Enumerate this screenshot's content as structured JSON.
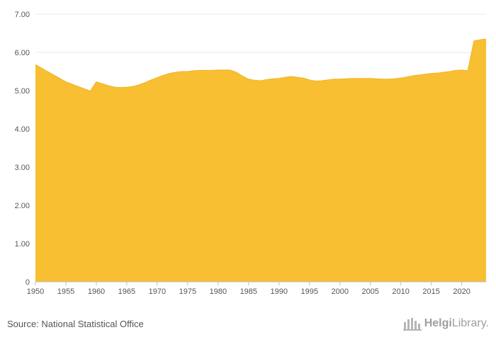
{
  "chart_data": {
    "type": "area",
    "title": "",
    "xlabel": "",
    "ylabel": "",
    "x": [
      1950,
      1951,
      1952,
      1953,
      1954,
      1955,
      1956,
      1957,
      1958,
      1959,
      1960,
      1961,
      1962,
      1963,
      1964,
      1965,
      1966,
      1967,
      1968,
      1969,
      1970,
      1971,
      1972,
      1973,
      1974,
      1975,
      1976,
      1977,
      1978,
      1979,
      1980,
      1981,
      1982,
      1983,
      1984,
      1985,
      1986,
      1987,
      1988,
      1989,
      1990,
      1991,
      1992,
      1993,
      1994,
      1995,
      1996,
      1997,
      1998,
      1999,
      2000,
      2001,
      2002,
      2003,
      2004,
      2005,
      2006,
      2007,
      2008,
      2009,
      2010,
      2011,
      2012,
      2013,
      2014,
      2015,
      2016,
      2017,
      2018,
      2019,
      2020,
      2021,
      2022,
      2023,
      2024
    ],
    "values": [
      5.68,
      5.59,
      5.5,
      5.41,
      5.32,
      5.23,
      5.17,
      5.11,
      5.05,
      4.99,
      5.23,
      5.18,
      5.13,
      5.09,
      5.08,
      5.09,
      5.11,
      5.15,
      5.21,
      5.28,
      5.34,
      5.4,
      5.45,
      5.48,
      5.5,
      5.5,
      5.52,
      5.53,
      5.53,
      5.53,
      5.54,
      5.54,
      5.54,
      5.48,
      5.38,
      5.3,
      5.27,
      5.26,
      5.29,
      5.31,
      5.32,
      5.35,
      5.37,
      5.35,
      5.33,
      5.28,
      5.25,
      5.26,
      5.28,
      5.3,
      5.3,
      5.31,
      5.32,
      5.32,
      5.32,
      5.32,
      5.31,
      5.3,
      5.3,
      5.31,
      5.33,
      5.36,
      5.39,
      5.41,
      5.43,
      5.45,
      5.46,
      5.48,
      5.5,
      5.53,
      5.54,
      5.52,
      6.3,
      6.33,
      6.35
    ],
    "ylim": [
      0,
      7
    ],
    "y_ticks": [
      0,
      1,
      2,
      3,
      4,
      5,
      6,
      7
    ],
    "y_tick_labels": [
      "0",
      "1.00",
      "2.00",
      "3.00",
      "4.00",
      "5.00",
      "6.00",
      "7.00"
    ],
    "x_ticks": [
      1950,
      1955,
      1960,
      1965,
      1970,
      1975,
      1980,
      1985,
      1990,
      1995,
      2000,
      2005,
      2010,
      2015,
      2020
    ],
    "x_tick_labels": [
      "1950",
      "1955",
      "1960",
      "1965",
      "1970",
      "1975",
      "1980",
      "1985",
      "1990",
      "1995",
      "2000",
      "2005",
      "2010",
      "2015",
      "2020"
    ],
    "grid": true,
    "fill_color": "#f9bf33",
    "line_color": "#f0b322"
  },
  "footer": {
    "source_text": "Source: National Statistical Office",
    "brand_part1": "Helgi",
    "brand_part2": "Library",
    "brand_suffix": ".",
    "logo_icon": "helgi-logo-icon"
  },
  "colors": {
    "grid": "#e8e8e8",
    "axis": "#bdbdbd",
    "tick_text": "#555555",
    "brand_text": "#9e9e9e"
  }
}
